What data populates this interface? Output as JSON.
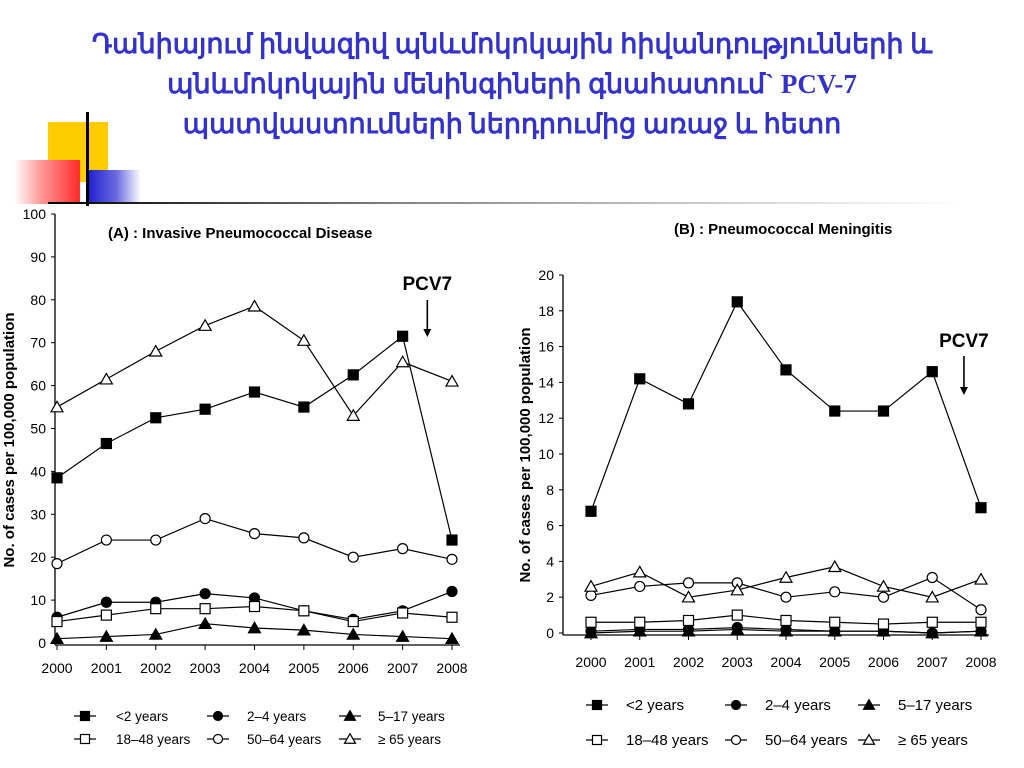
{
  "slide": {
    "title_lines": [
      "Դանիայում ինվազիվ պնևմոկոկային հիվանդությունների և",
      "պնևմոկոկային մենինգիների գնահատում` PCV-7",
      "պատվաստումների ներդրումից առաջ և հետո"
    ],
    "colors": {
      "title": "#3333cc",
      "deco_yellow": "#ffcc00",
      "deco_red": "#ff2a2a",
      "deco_blue": "#1a1acc"
    }
  },
  "chart_data": [
    {
      "type": "line",
      "title": "(A) : Invasive Pneumococcal Disease",
      "ylabel": "No. of cases per 100,000 population",
      "xlabel": "",
      "x": [
        2000,
        2001,
        2002,
        2003,
        2004,
        2005,
        2006,
        2007,
        2008
      ],
      "ylim": [
        0,
        100
      ],
      "yticks": [
        0,
        10,
        20,
        30,
        40,
        50,
        60,
        70,
        80,
        90,
        100
      ],
      "grid": false,
      "annotation": {
        "text": "PCV7",
        "x": 2007.5
      },
      "legend_position": "bottom",
      "series": [
        {
          "name": "<2 years",
          "marker": "filled-square",
          "values": [
            38.5,
            46.5,
            52.5,
            54.5,
            58.5,
            55,
            62.5,
            71.5,
            24
          ]
        },
        {
          "name": "2–4 years",
          "marker": "filled-circle",
          "values": [
            6,
            9.5,
            9.5,
            11.5,
            10.5,
            7.5,
            5.5,
            7.5,
            12
          ]
        },
        {
          "name": "5–17 years",
          "marker": "filled-triangle",
          "values": [
            1,
            1.5,
            2,
            4.5,
            3.5,
            3,
            2,
            1.5,
            1
          ]
        },
        {
          "name": "18–48 years",
          "marker": "open-square",
          "values": [
            5,
            6.5,
            8,
            8,
            8.5,
            7.5,
            5,
            7,
            6
          ]
        },
        {
          "name": "50–64 years",
          "marker": "open-circle",
          "values": [
            18.5,
            24,
            24,
            29,
            25.5,
            24.5,
            20,
            22,
            19.5
          ]
        },
        {
          "name": "≥ 65 years",
          "marker": "open-triangle",
          "values": [
            55,
            61.5,
            68,
            74,
            78.5,
            70.5,
            53,
            65.5,
            61
          ]
        }
      ]
    },
    {
      "type": "line",
      "title": "(B) : Pneumococcal Meningitis",
      "ylabel": "No. of cases per 100,000 population",
      "xlabel": "",
      "x": [
        2000,
        2001,
        2002,
        2003,
        2004,
        2005,
        2006,
        2007,
        2008
      ],
      "ylim": [
        0,
        20
      ],
      "yticks": [
        0,
        2,
        4,
        6,
        8,
        10,
        12,
        14,
        16,
        18,
        20
      ],
      "grid": false,
      "annotation": {
        "text": "PCV7",
        "x": 2007.65
      },
      "legend_position": "bottom",
      "series": [
        {
          "name": "<2 years",
          "marker": "filled-square",
          "values": [
            6.8,
            14.2,
            12.8,
            18.5,
            14.7,
            12.4,
            12.4,
            14.6,
            7.0
          ]
        },
        {
          "name": "2–4 years",
          "marker": "filled-circle",
          "values": [
            0.1,
            0.2,
            0.2,
            0.3,
            0.2,
            0.1,
            0.1,
            0.0,
            0.1
          ]
        },
        {
          "name": "5–17 years",
          "marker": "filled-triangle",
          "values": [
            0.0,
            0.1,
            0.1,
            0.2,
            0.1,
            0.1,
            0.1,
            0.0,
            0.1
          ]
        },
        {
          "name": "18–48 years",
          "marker": "open-square",
          "values": [
            0.6,
            0.6,
            0.7,
            1.0,
            0.7,
            0.6,
            0.5,
            0.6,
            0.6
          ]
        },
        {
          "name": "50–64 years",
          "marker": "open-circle",
          "values": [
            2.1,
            2.6,
            2.8,
            2.8,
            2.0,
            2.3,
            2.0,
            3.1,
            1.3
          ]
        },
        {
          "name": "≥ 65 years",
          "marker": "open-triangle",
          "values": [
            2.6,
            3.4,
            2.0,
            2.4,
            3.1,
            3.7,
            2.6,
            2.0,
            3.0
          ]
        }
      ]
    }
  ]
}
